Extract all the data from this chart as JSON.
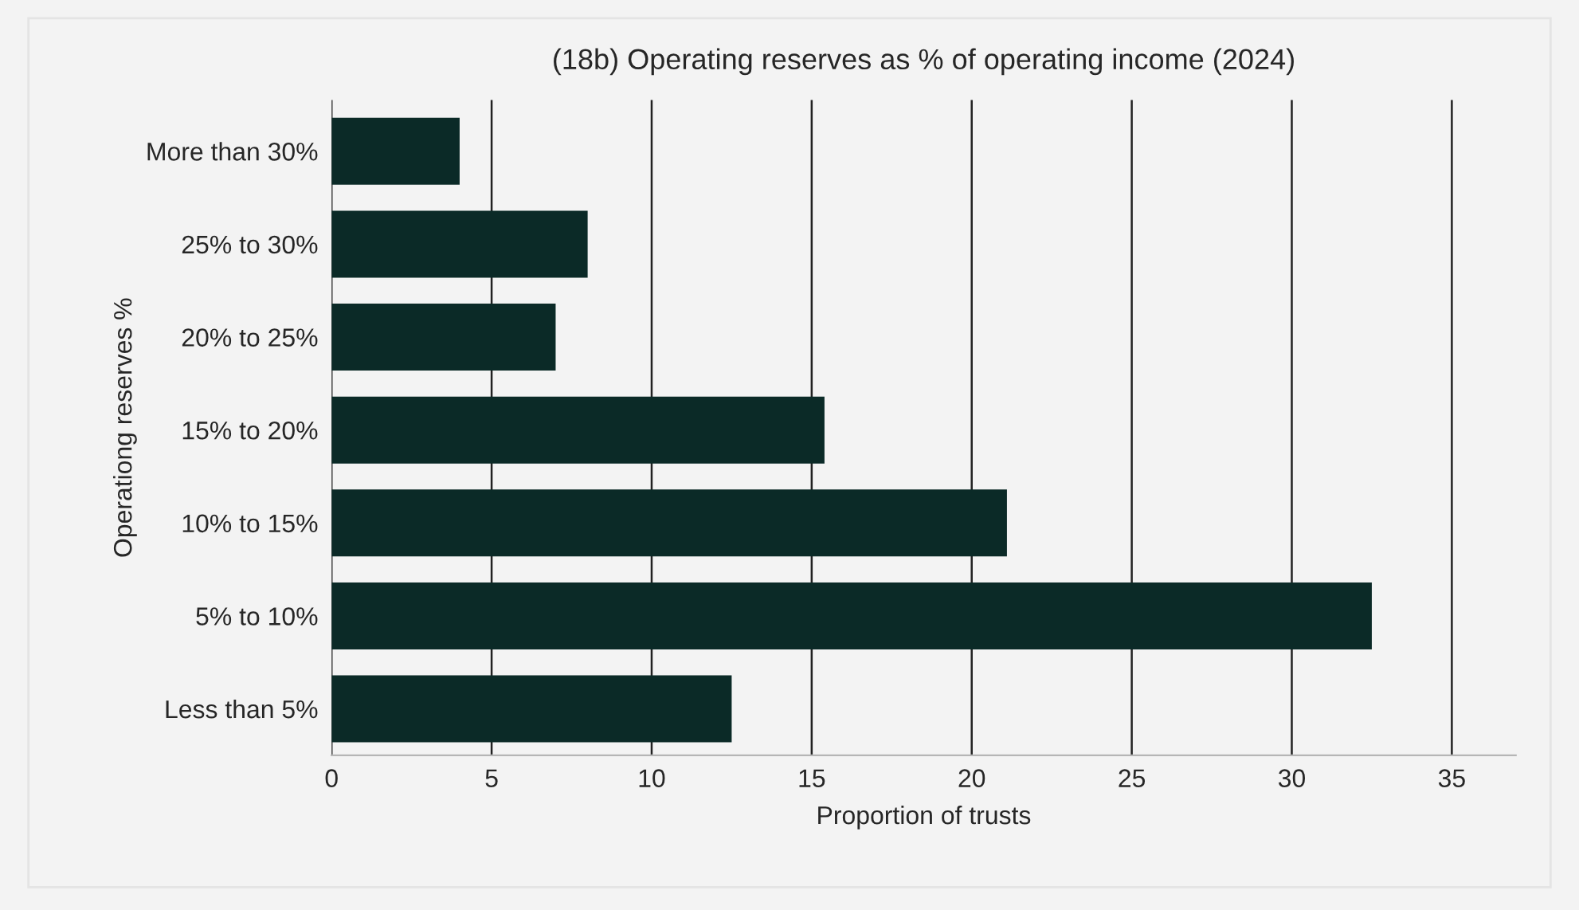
{
  "chart_data": {
    "type": "bar",
    "orientation": "horizontal",
    "title": "(18b) Operating reserves as % of operating income (2024)",
    "xlabel": "Proportion of trusts",
    "ylabel": "Operationg reserves %",
    "categories": [
      "More than 30%",
      "25% to 30%",
      "20% to 25%",
      "15% to 20%",
      "10% to 15%",
      "5% to 10%",
      "Less than 5%"
    ],
    "values": [
      4,
      8,
      7,
      15.4,
      21.1,
      32.5,
      12.5
    ],
    "color": "#0b2a27",
    "xlim": [
      0,
      37
    ],
    "xticks": [
      0,
      5,
      10,
      15,
      20,
      25,
      30,
      35
    ],
    "grid": "x"
  }
}
